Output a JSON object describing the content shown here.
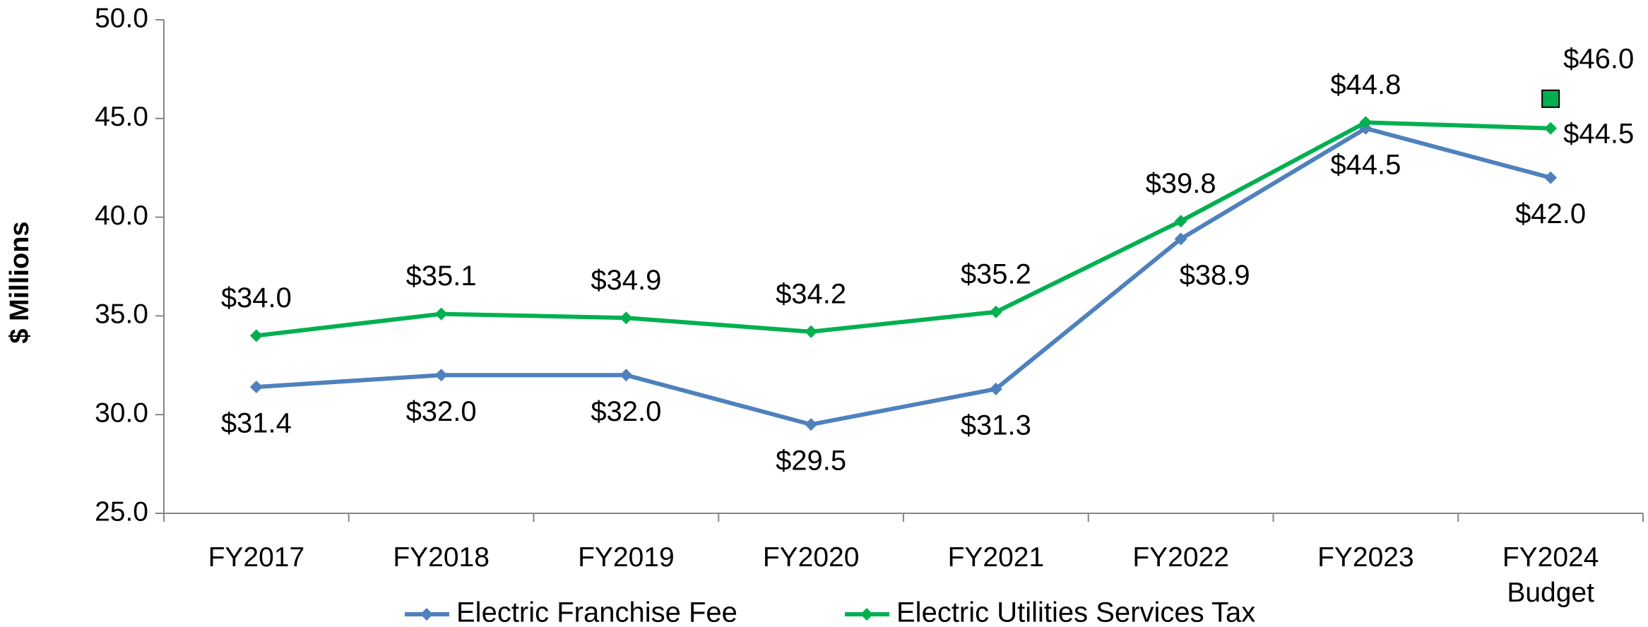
{
  "chart_data": {
    "type": "line",
    "ylabel": "$ Millions",
    "categories": [
      "FY2017",
      "FY2018",
      "FY2019",
      "FY2020",
      "FY2021",
      "FY2022",
      "FY2023",
      "FY2024 Budget"
    ],
    "series": [
      {
        "name": "Electric Franchise Fee",
        "color": "#4f81bd",
        "values": [
          31.4,
          32.0,
          32.0,
          29.5,
          31.3,
          38.9,
          44.5,
          42.0
        ],
        "value_labels": [
          "$31.4",
          "$32.0",
          "$32.0",
          "$29.5",
          "$31.3",
          "$38.9",
          "$44.5",
          "$42.0"
        ]
      },
      {
        "name": "Electric Utilities Services Tax",
        "color": "#00b050",
        "values": [
          34.0,
          35.1,
          34.9,
          34.2,
          35.2,
          39.8,
          44.8,
          44.5
        ],
        "value_labels": [
          "$34.0",
          "$35.1",
          "$34.9",
          "$34.2",
          "$35.2",
          "$39.8",
          "$44.8",
          "$44.5"
        ]
      }
    ],
    "annotations": [
      {
        "value": 46.0,
        "label": "$46.0",
        "color": "#00b050"
      }
    ],
    "ylim": [
      25,
      50
    ],
    "yticks": [
      {
        "value": 25,
        "label": "25.0"
      },
      {
        "value": 30,
        "label": "30.0"
      },
      {
        "value": 35,
        "label": "35.0"
      },
      {
        "value": 40,
        "label": "40.0"
      },
      {
        "value": 45,
        "label": "45.0"
      },
      {
        "value": 50,
        "label": "50.0"
      }
    ],
    "legend": "bottom"
  }
}
